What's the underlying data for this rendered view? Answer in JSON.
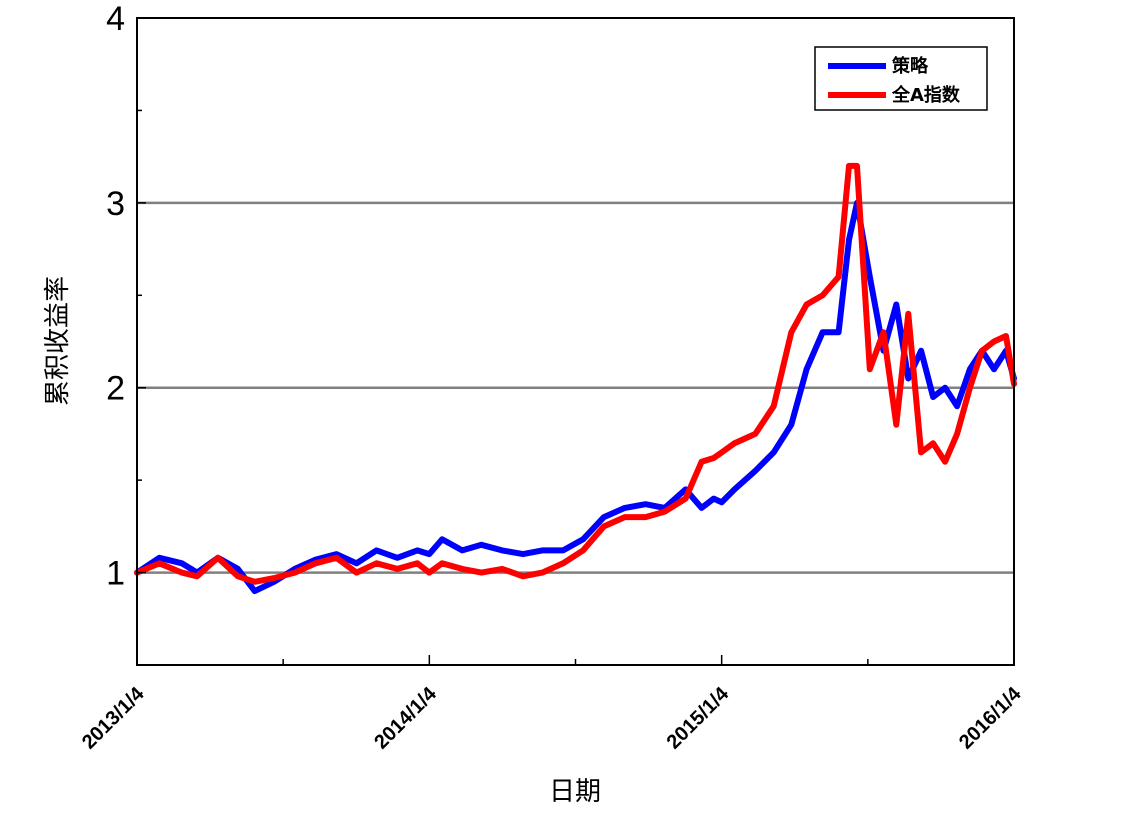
{
  "chart_data": {
    "type": "line",
    "title": "",
    "xlabel": "日期",
    "ylabel": "累积收益率",
    "x_ticks": [
      "2013/1/4",
      "2014/1/4",
      "2015/1/4",
      "2016/1/4"
    ],
    "y_ticks": [
      1,
      2,
      3,
      4
    ],
    "xlim": [
      "2013/1/4",
      "2016/1/4"
    ],
    "ylim": [
      0.5,
      4
    ],
    "grid": "horizontal",
    "legend": "top-right",
    "series": [
      {
        "name": "策略",
        "color": "#0000ff",
        "x": [
          "2013/1/4",
          "2013/2/1",
          "2013/3/1",
          "2013/3/20",
          "2013/4/15",
          "2013/5/10",
          "2013/5/31",
          "2013/6/24",
          "2013/7/20",
          "2013/8/15",
          "2013/9/10",
          "2013/10/5",
          "2013/10/30",
          "2013/11/25",
          "2013/12/20",
          "2014/1/4",
          "2014/1/20",
          "2014/2/14",
          "2014/3/10",
          "2014/4/5",
          "2014/5/1",
          "2014/5/25",
          "2014/6/20",
          "2014/7/15",
          "2014/8/10",
          "2014/9/5",
          "2014/10/1",
          "2014/10/25",
          "2014/11/20",
          "2014/12/10",
          "2014/12/25",
          "2015/1/4",
          "2015/1/20",
          "2015/2/15",
          "2015/3/10",
          "2015/4/1",
          "2015/4/20",
          "2015/5/10",
          "2015/5/30",
          "2015/6/12",
          "2015/6/22",
          "2015/7/8",
          "2015/7/25",
          "2015/8/10",
          "2015/8/25",
          "2015/9/10",
          "2015/9/25",
          "2015/10/10",
          "2015/10/25",
          "2015/11/10",
          "2015/11/25",
          "2015/12/10",
          "2015/12/25",
          "2016/1/4"
        ],
        "values": [
          1.0,
          1.08,
          1.05,
          1.0,
          1.08,
          1.02,
          0.9,
          0.95,
          1.02,
          1.07,
          1.1,
          1.05,
          1.12,
          1.08,
          1.12,
          1.1,
          1.18,
          1.12,
          1.15,
          1.12,
          1.1,
          1.12,
          1.12,
          1.18,
          1.3,
          1.35,
          1.37,
          1.35,
          1.45,
          1.35,
          1.4,
          1.38,
          1.45,
          1.55,
          1.65,
          1.8,
          2.1,
          2.3,
          2.3,
          2.8,
          3.0,
          2.6,
          2.2,
          2.45,
          2.05,
          2.2,
          1.95,
          2.0,
          1.9,
          2.1,
          2.2,
          2.1,
          2.2,
          2.05
        ]
      },
      {
        "name": "全A指数",
        "color": "#ff0000",
        "x": [
          "2013/1/4",
          "2013/2/1",
          "2013/3/1",
          "2013/3/20",
          "2013/4/15",
          "2013/5/10",
          "2013/5/31",
          "2013/6/24",
          "2013/7/20",
          "2013/8/15",
          "2013/9/10",
          "2013/10/5",
          "2013/10/30",
          "2013/11/25",
          "2013/12/20",
          "2014/1/4",
          "2014/1/20",
          "2014/2/14",
          "2014/3/10",
          "2014/4/5",
          "2014/5/1",
          "2014/5/25",
          "2014/6/20",
          "2014/7/15",
          "2014/8/10",
          "2014/9/5",
          "2014/10/1",
          "2014/10/25",
          "2014/11/20",
          "2014/12/10",
          "2014/12/25",
          "2015/1/4",
          "2015/1/20",
          "2015/2/15",
          "2015/3/10",
          "2015/4/1",
          "2015/4/20",
          "2015/5/10",
          "2015/5/30",
          "2015/6/12",
          "2015/6/22",
          "2015/7/8",
          "2015/7/25",
          "2015/8/10",
          "2015/8/25",
          "2015/9/10",
          "2015/9/25",
          "2015/10/10",
          "2015/10/25",
          "2015/11/10",
          "2015/11/25",
          "2015/12/10",
          "2015/12/25",
          "2016/1/4"
        ],
        "values": [
          1.0,
          1.05,
          1.0,
          0.98,
          1.08,
          0.98,
          0.95,
          0.97,
          1.0,
          1.05,
          1.08,
          1.0,
          1.05,
          1.02,
          1.05,
          1.0,
          1.05,
          1.02,
          1.0,
          1.02,
          0.98,
          1.0,
          1.05,
          1.12,
          1.25,
          1.3,
          1.3,
          1.33,
          1.4,
          1.6,
          1.62,
          1.65,
          1.7,
          1.75,
          1.9,
          2.3,
          2.45,
          2.5,
          2.6,
          3.2,
          3.2,
          2.1,
          2.3,
          1.8,
          2.4,
          1.65,
          1.7,
          1.6,
          1.75,
          2.0,
          2.2,
          2.25,
          2.28,
          2.02
        ]
      }
    ]
  }
}
